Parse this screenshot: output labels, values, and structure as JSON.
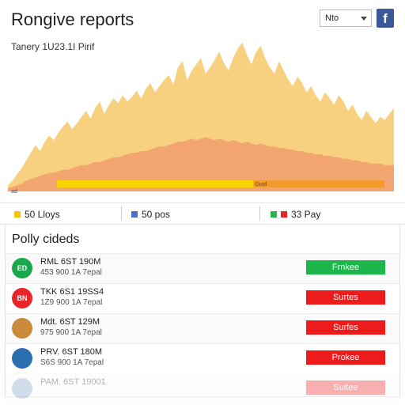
{
  "header": {
    "title": "Rongive reports",
    "select_value": "Nto",
    "facebook_glyph": "f",
    "subtitle": "Tanery 1U23.1I Pirif"
  },
  "chart_data": {
    "type": "area",
    "title": "",
    "xlabel": "",
    "ylabel": "",
    "ylim": [
      0,
      100
    ],
    "corner_label": "ad",
    "bar_label": "Outd",
    "progress_fraction": 0.6,
    "series": [
      {
        "color": "#f7c96a",
        "values": [
          4,
          7,
          11,
          15,
          20,
          25,
          30,
          26,
          32,
          36,
          33,
          38,
          42,
          45,
          40,
          44,
          48,
          52,
          47,
          54,
          58,
          50,
          56,
          60,
          57,
          62,
          58,
          61,
          65,
          60,
          66,
          70,
          64,
          68,
          72,
          75,
          69,
          80,
          84,
          72,
          78,
          82,
          86,
          76,
          80,
          85,
          90,
          83,
          78,
          86,
          92,
          96,
          88,
          82,
          90,
          94,
          86,
          80,
          76,
          84,
          78,
          72,
          68,
          74,
          70,
          64,
          68,
          62,
          58,
          64,
          60,
          56,
          62,
          58,
          52,
          56,
          50,
          46,
          52,
          48,
          44,
          48,
          46,
          50,
          54
        ]
      },
      {
        "color": "#f2a06e",
        "values": [
          2,
          3,
          4,
          5,
          7,
          8,
          9,
          10,
          11,
          12,
          12,
          13,
          14,
          14,
          15,
          16,
          17,
          17,
          18,
          19,
          19,
          20,
          21,
          22,
          22,
          23,
          24,
          25,
          25,
          26,
          26,
          27,
          28,
          29,
          29,
          30,
          31,
          32,
          32,
          33,
          34,
          33,
          34,
          35,
          34,
          33,
          34,
          33,
          32,
          33,
          32,
          31,
          32,
          31,
          30,
          31,
          30,
          29,
          29,
          28,
          28,
          27,
          27,
          26,
          26,
          25,
          25,
          24,
          24,
          23,
          23,
          22,
          22,
          21,
          21,
          20,
          20,
          19,
          19,
          18,
          18,
          18,
          17,
          17,
          17
        ]
      }
    ]
  },
  "legend": [
    {
      "label": "50 Lloys",
      "color": "#f5c400"
    },
    {
      "label": "50 pos",
      "color": "#4a72c8"
    },
    {
      "label": "33 Pay",
      "color": "#25b34a",
      "color2": "#e8262a"
    }
  ],
  "panel": {
    "title": "Polly cideds",
    "rows": [
      {
        "avatar_text": "ED",
        "avatar_color": "#1aa84c",
        "line1": "RML 6ST 190M",
        "line2": "453 900 1A 7epal",
        "status": "Frnkee",
        "status_color": "#1db64a"
      },
      {
        "avatar_text": "BN",
        "avatar_color": "#e8262a",
        "line1": "TKK 6S1 19SS4",
        "line2": "1Z9 900 1A 7epal",
        "status": "Surtes",
        "status_color": "#ec1c1c"
      },
      {
        "avatar_text": "",
        "avatar_color": "#c98a3a",
        "line1": "Mdt. 6ST 129M",
        "line2": "975 900 1A 7epal",
        "status": "Surfes",
        "status_color": "#ec1c1c"
      },
      {
        "avatar_text": "",
        "avatar_color": "#2a6fb0",
        "line1": "PRV. 6ST 180M",
        "line2": "S6S 900 1A 7epal",
        "status": "Prokee",
        "status_color": "#ec1c1c"
      },
      {
        "avatar_text": "",
        "avatar_color": "#7a9cc4",
        "line1": "PAM. 6ST 19001",
        "line2": "",
        "status": "Suitee",
        "status_color": "#ec1c1c"
      }
    ]
  }
}
